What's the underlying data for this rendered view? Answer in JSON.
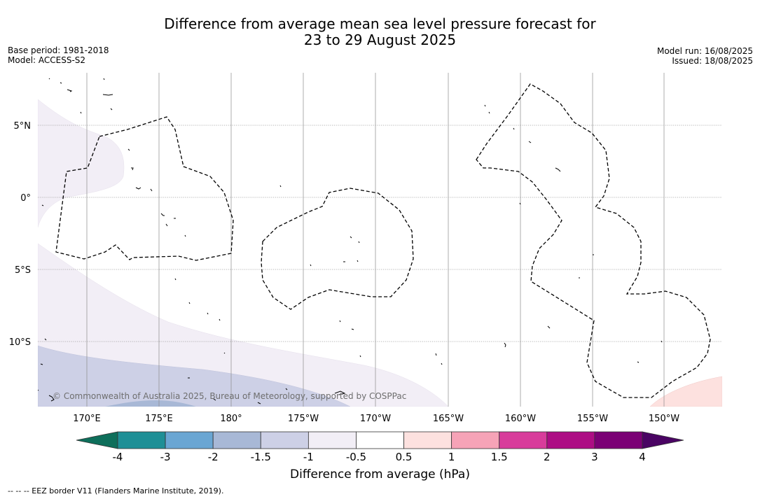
{
  "title": {
    "line1": "Difference from average mean sea level pressure forecast for",
    "line2": "23 to 29 August 2025"
  },
  "meta": {
    "base_period": "Base period: 1981-2018",
    "model": "Model: ACCESS-S2",
    "model_run": "Model run: 16/08/2025",
    "issued": "Issued: 18/08/2025"
  },
  "copyright": "© Commonwealth of Australia 2025, Bureau of Meteorology, supported by COSPPac",
  "footnote": "--  --  -- EEZ border V11 (Flanders Marine Institute, 2019).",
  "map": {
    "lat_labels": [
      {
        "lat": 5,
        "label": "5°N"
      },
      {
        "lat": 0,
        "label": "0°"
      },
      {
        "lat": -5,
        "label": "5°S"
      },
      {
        "lat": -10,
        "label": "10°S"
      }
    ],
    "lon_labels": [
      {
        "lon": 170,
        "label": "170°E"
      },
      {
        "lon": 175,
        "label": "175°E"
      },
      {
        "lon": 180,
        "label": "180°"
      },
      {
        "lon": 185,
        "label": "175°W"
      },
      {
        "lon": 190,
        "label": "170°W"
      },
      {
        "lon": 195,
        "label": "165°W"
      },
      {
        "lon": 200,
        "label": "160°W"
      },
      {
        "lon": 205,
        "label": "155°W"
      },
      {
        "lon": 210,
        "label": "150°W"
      }
    ]
  },
  "colorbar": {
    "title": "Difference from average (hPa)",
    "ticks": [
      "-4",
      "-3",
      "-2",
      "-1.5",
      "-1",
      "-0.5",
      "0.5",
      "1",
      "1.5",
      "2",
      "3",
      "4"
    ],
    "colors": [
      "#1e8f96",
      "#6aa6d3",
      "#a8b8d6",
      "#cdd0e6",
      "#f2eef6",
      "#ffffff",
      "#fde1df",
      "#f6a3b7",
      "#d83c9b",
      "#ad0d84",
      "#7b0075"
    ],
    "under_color": "#0e6f5b",
    "over_color": "#4a0463"
  },
  "colors": {
    "minus_0_5_to_minus_1": "#f2eef6",
    "minus_1_to_minus_1_5": "#cdd0e6",
    "minus_1_5_to_minus_2": "#a8b8d6",
    "plus_0_5_to_1": "#fde1df"
  }
}
